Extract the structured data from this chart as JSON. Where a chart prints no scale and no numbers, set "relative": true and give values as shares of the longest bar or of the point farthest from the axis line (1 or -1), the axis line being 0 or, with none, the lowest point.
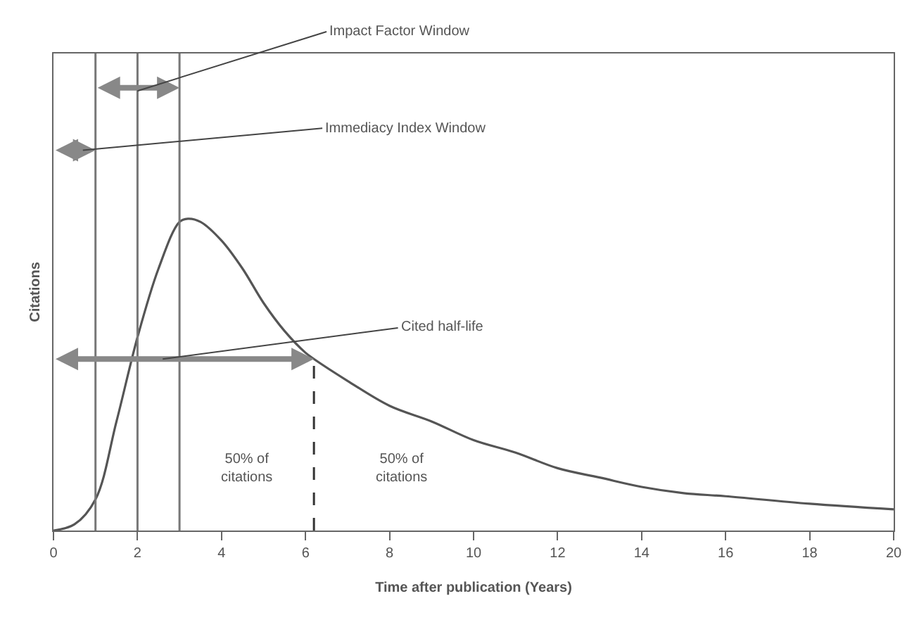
{
  "chart_data": {
    "type": "line",
    "relative": true,
    "xlabel": "Time after publication (Years)",
    "ylabel": "Citations",
    "x": [
      0,
      0.5,
      1,
      1.5,
      2,
      2.5,
      3,
      3.2,
      3.5,
      4,
      4.5,
      5,
      5.5,
      6,
      6.2,
      7,
      8,
      9,
      10,
      11,
      12,
      13,
      14,
      15,
      16,
      18,
      20
    ],
    "series": [
      {
        "color": "#555555",
        "values": [
          0,
          0.02,
          0.1,
          0.35,
          0.62,
          0.84,
          0.99,
          1,
          0.99,
          0.93,
          0.84,
          0.73,
          0.64,
          0.57,
          0.55,
          0.48,
          0.4,
          0.35,
          0.29,
          0.25,
          0.2,
          0.17,
          0.14,
          0.12,
          0.11,
          0.086,
          0.068
        ]
      }
    ],
    "xlim": [
      0,
      20
    ],
    "xticks": [
      0,
      2,
      4,
      6,
      8,
      10,
      12,
      14,
      16,
      18,
      20
    ],
    "ref_lines": [
      {
        "axis": "x",
        "value": 1,
        "color": "#777777"
      },
      {
        "axis": "x",
        "value": 2,
        "color": "#777777"
      },
      {
        "axis": "x",
        "value": 3,
        "color": "#777777"
      },
      {
        "axis": "x",
        "value": 6.2,
        "color": "#333333",
        "line_style": "dashed"
      }
    ],
    "annotations": [
      "Impact Factor Window",
      "Immediacy Index Window",
      "Cited half-life",
      "50% of\ncitations",
      "50% of\ncitations"
    ],
    "marker": "none",
    "line_style": "solid"
  }
}
